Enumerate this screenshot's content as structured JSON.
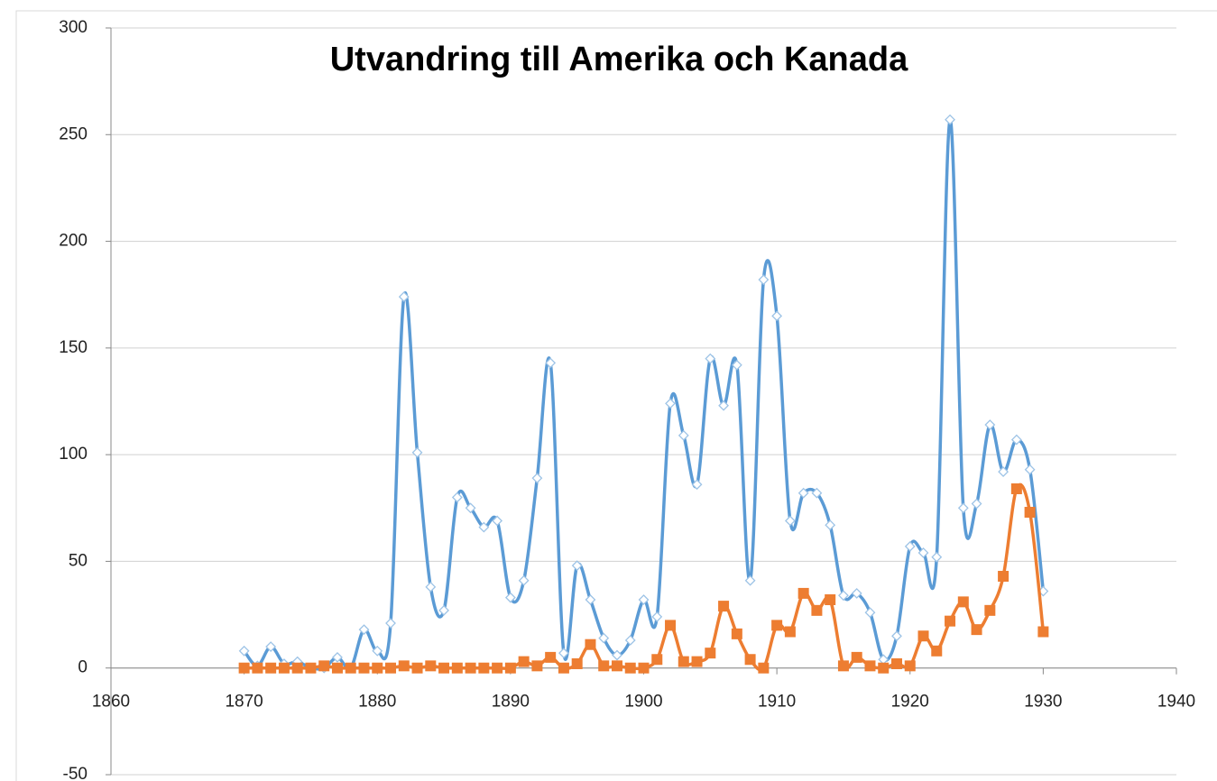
{
  "chart_data": {
    "type": "line",
    "title": "Utvandring till Amerika och Kanada",
    "x": [
      1870,
      1871,
      1872,
      1873,
      1874,
      1875,
      1876,
      1877,
      1878,
      1879,
      1880,
      1881,
      1882,
      1883,
      1884,
      1885,
      1886,
      1887,
      1888,
      1889,
      1890,
      1891,
      1892,
      1893,
      1894,
      1895,
      1896,
      1897,
      1898,
      1899,
      1900,
      1901,
      1902,
      1903,
      1904,
      1905,
      1906,
      1907,
      1908,
      1909,
      1910,
      1911,
      1912,
      1913,
      1914,
      1915,
      1916,
      1917,
      1918,
      1919,
      1920,
      1921,
      1922,
      1923,
      1924,
      1925,
      1926,
      1927,
      1928,
      1929,
      1930
    ],
    "series": [
      {
        "color": "#5b9bd5",
        "marker": "diamond",
        "values": [
          8,
          1,
          10,
          2,
          3,
          0,
          0,
          5,
          0,
          18,
          8,
          21,
          174,
          101,
          38,
          27,
          80,
          75,
          66,
          69,
          33,
          41,
          89,
          143,
          7,
          48,
          32,
          14,
          6,
          13,
          32,
          24,
          124,
          109,
          86,
          145,
          123,
          142,
          41,
          182,
          165,
          69,
          82,
          82,
          67,
          34,
          35,
          26,
          4,
          15,
          57,
          54,
          52,
          257,
          75,
          77,
          114,
          92,
          107,
          93,
          36
        ]
      },
      {
        "color": "#ed7d31",
        "marker": "square",
        "values": [
          0,
          0,
          0,
          0,
          0,
          0,
          1,
          0,
          0,
          0,
          0,
          0,
          1,
          0,
          1,
          0,
          0,
          0,
          0,
          0,
          0,
          3,
          1,
          5,
          0,
          2,
          11,
          1,
          1,
          0,
          0,
          4,
          20,
          3,
          3,
          7,
          29,
          16,
          4,
          0,
          20,
          17,
          35,
          27,
          32,
          1,
          5,
          1,
          0,
          2,
          1,
          15,
          8,
          22,
          31,
          18,
          27,
          43,
          84,
          73,
          17
        ]
      }
    ],
    "xlim": [
      1860,
      1940
    ],
    "xticks": [
      1860,
      1870,
      1880,
      1890,
      1900,
      1910,
      1920,
      1930,
      1940
    ],
    "ylim": [
      -50,
      300
    ],
    "yticks": [
      -50,
      0,
      50,
      100,
      150,
      200,
      250,
      300
    ],
    "grid": true,
    "smooth": true
  }
}
